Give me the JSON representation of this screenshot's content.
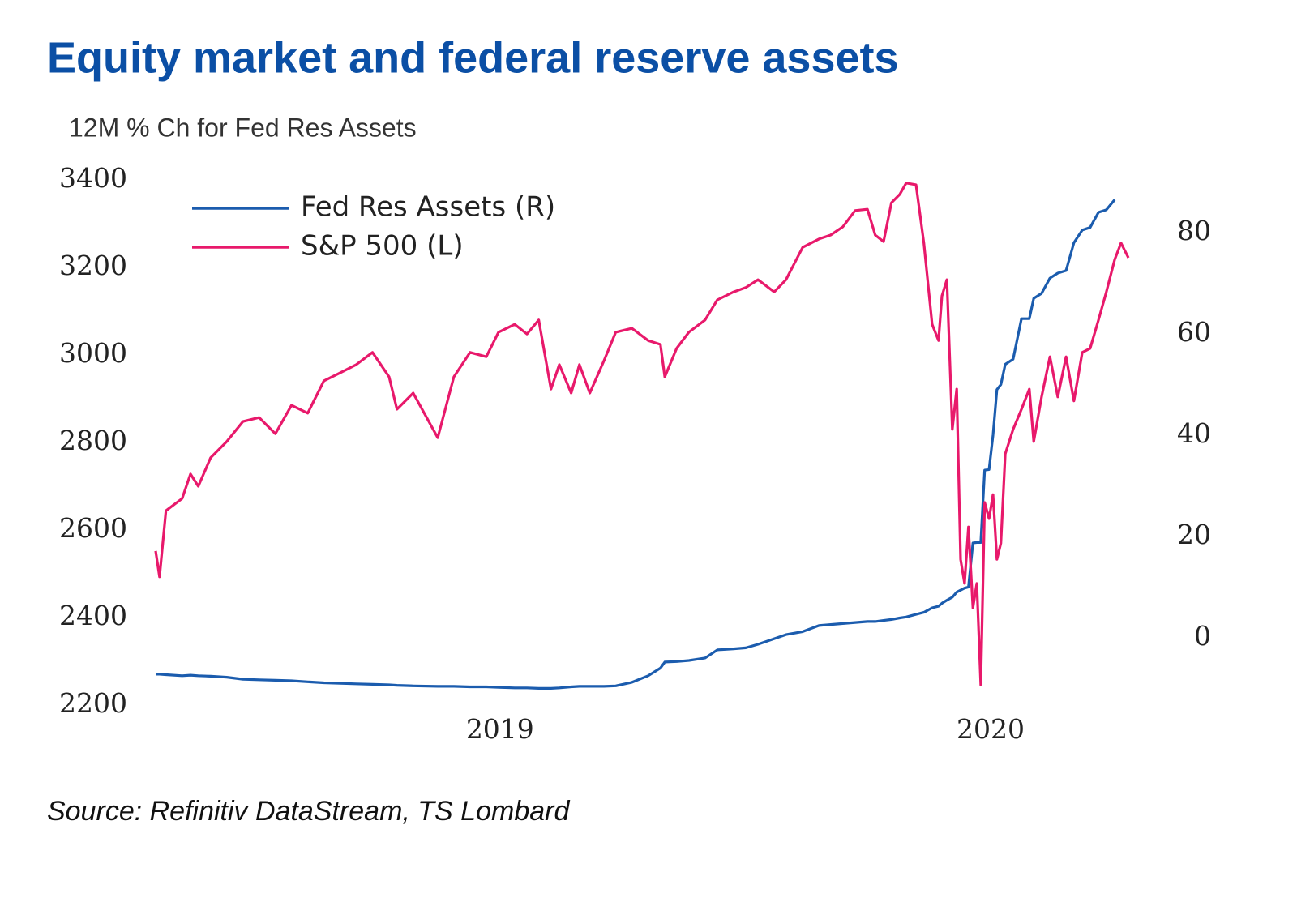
{
  "chart_data": {
    "type": "line",
    "title": "Equity market and federal reserve assets",
    "subtitle": "12M % Ch for Fed Res Assets",
    "source": "Source: Refinitiv DataStream, TS Lombard",
    "x": [
      2018.298,
      2018.306,
      2018.319,
      2018.352,
      2018.369,
      2018.385,
      2018.41,
      2018.443,
      2018.476,
      2018.509,
      2018.542,
      2018.575,
      2018.608,
      2018.641,
      2018.674,
      2018.707,
      2018.74,
      2018.774,
      2018.79,
      2018.823,
      2018.873,
      2018.906,
      2018.939,
      2018.972,
      2018.997,
      2019.03,
      2019.055,
      2019.079,
      2019.104,
      2019.121,
      2019.145,
      2019.162,
      2019.183,
      2019.212,
      2019.236,
      2019.269,
      2019.302,
      2019.327,
      2019.336,
      2019.36,
      2019.385,
      2019.418,
      2019.443,
      2019.476,
      2019.501,
      2019.526,
      2019.559,
      2019.583,
      2019.617,
      2019.65,
      2019.674,
      2019.699,
      2019.724,
      2019.749,
      2019.765,
      2019.782,
      2019.798,
      2019.815,
      2019.828,
      2019.848,
      2019.864,
      2019.881,
      2019.894,
      2019.901,
      2019.911,
      2019.922,
      2019.931,
      2019.939,
      2019.947,
      2019.955,
      2019.964,
      2019.972,
      2019.98,
      2019.988,
      2019.997,
      2020.005,
      2020.013,
      2020.021,
      2020.03,
      2020.046,
      2020.063,
      2020.079,
      2020.088,
      2020.104,
      2020.121,
      2020.137,
      2020.154,
      2020.17,
      2020.187,
      2020.203,
      2020.22,
      2020.236,
      2020.253,
      2020.266,
      2020.281
    ],
    "series": [
      {
        "name": "Fed Res Assets (R)",
        "color": "#1b5cae",
        "axis": "y2",
        "values": [
          -7.2,
          -7.2,
          -7.3,
          -7.5,
          -7.4,
          -7.5,
          -7.6,
          -7.8,
          -8.2,
          -8.3,
          -8.4,
          -8.5,
          -8.7,
          -8.9,
          -9.0,
          -9.1,
          -9.2,
          -9.3,
          -9.4,
          -9.5,
          -9.6,
          -9.6,
          -9.7,
          -9.7,
          -9.8,
          -9.9,
          -9.9,
          -10.0,
          -10.0,
          -9.9,
          -9.7,
          -9.6,
          -9.6,
          -9.6,
          -9.5,
          -8.8,
          -7.5,
          -6.0,
          -4.8,
          -4.7,
          -4.5,
          -4.0,
          -2.4,
          -2.2,
          -2.0,
          -1.3,
          -0.2,
          0.6,
          1.2,
          2.4,
          2.6,
          2.8,
          3.0,
          3.2,
          3.2,
          3.4,
          3.6,
          3.9,
          4.1,
          4.6,
          5.0,
          5.9,
          6.2,
          6.8,
          7.4,
          8.0,
          9.0,
          9.4,
          9.8,
          10.0,
          18.7,
          18.8,
          18.8,
          33.1,
          33.2,
          40,
          49,
          50,
          54,
          55,
          63,
          63,
          67,
          68,
          71,
          72,
          72.5,
          78,
          80.5,
          81,
          84,
          84.5,
          86.5,
          null,
          null
        ]
      },
      {
        "name": "S&P 500 (L)",
        "color": "#e8196b",
        "values": [
          2552,
          2493,
          2644,
          2672,
          2728,
          2700,
          2765,
          2802,
          2848,
          2857,
          2820,
          2885,
          2867,
          2941,
          2959,
          2978,
          3006,
          2950,
          2876,
          2913,
          2811,
          2950,
          3006,
          2996,
          3052,
          3070,
          3048,
          3080,
          2922,
          2978,
          2913,
          2978,
          2913,
          2987,
          3052,
          3061,
          3033,
          3024,
          2950,
          3015,
          3052,
          3080,
          3126,
          3144,
          3154,
          3172,
          3144,
          3172,
          3246,
          3265,
          3274,
          3293,
          3330,
          3333,
          3274,
          3259,
          3348,
          3367,
          3393,
          3389,
          3256,
          3070,
          3033,
          3135,
          3172,
          2830,
          2922,
          2533,
          2478,
          2607,
          2422,
          2478,
          2246,
          2663,
          2626,
          2681,
          2533,
          2570,
          2774,
          2830,
          2876,
          2922,
          2802,
          2904,
          2996,
          2904,
          2996,
          2895,
          3006,
          3015,
          3080,
          3144,
          3218,
          3256,
          3222
        ]
      }
    ],
    "xlim": [
      2018.298,
      2020.281
    ],
    "xticks": [
      2019,
      2020
    ],
    "ylim": [
      2200,
      3400
    ],
    "yticks": [
      2200,
      2400,
      2600,
      2800,
      3000,
      3200,
      3400
    ],
    "y2lim": [
      -13.3,
      90.4
    ],
    "y2ticks": [
      0,
      20,
      40,
      60,
      80
    ],
    "legend": "top-left"
  }
}
